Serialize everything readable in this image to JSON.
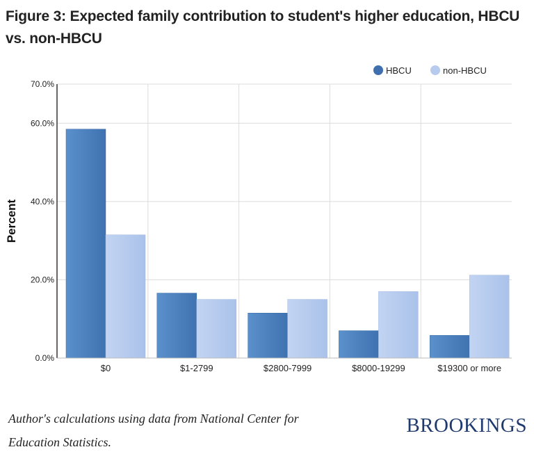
{
  "title": "Figure 3: Expected family contribution to student's higher education, HBCU vs. non-HBCU",
  "source_note": "Author's calculations using data from National Center for Education Statistics.",
  "brand": "BROOKINGS",
  "colors": {
    "hbcu": "#4a7fbd",
    "non_hbcu": "#b6cbee",
    "grid": "#dcdcdc",
    "axis": "#333333"
  },
  "chart_data": {
    "type": "bar",
    "ylabel": "Percent",
    "xlabel": "",
    "ylim": [
      0,
      70
    ],
    "yticks": [
      "0.0%",
      "20.0%",
      "40.0%",
      "60.0%",
      "70.0%"
    ],
    "ytick_values": [
      0,
      20,
      40,
      60,
      70
    ],
    "grid": true,
    "legend_position": "top-right",
    "categories": [
      "$0",
      "$1-2799",
      "$2800-7999",
      "$8000-19299",
      "$19300 or more"
    ],
    "series": [
      {
        "name": "HBCU",
        "values": [
          58.5,
          16.6,
          11.5,
          7.0,
          5.8
        ]
      },
      {
        "name": "non-HBCU",
        "values": [
          31.5,
          15.0,
          15.0,
          17.0,
          21.2
        ]
      }
    ]
  }
}
